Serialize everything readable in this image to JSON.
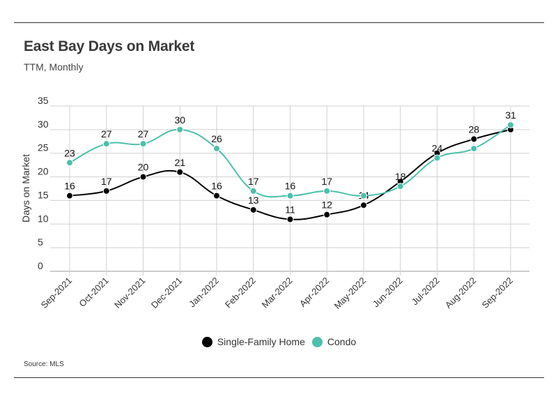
{
  "title": "East Bay Days on Market",
  "subtitle": "TTM, Monthly",
  "source": "Source:  MLS",
  "chart_data": {
    "type": "line",
    "title": "East Bay Days on Market",
    "subtitle": "TTM, Monthly",
    "xlabel": "",
    "ylabel": "Days on Market",
    "ylim": [
      0,
      35
    ],
    "yticks": [
      0,
      5,
      10,
      15,
      20,
      25,
      30,
      35
    ],
    "grid": true,
    "legend_position": "bottom",
    "categories": [
      "Sep-2021",
      "Oct-2021",
      "Nov-2021",
      "Dec-2021",
      "Jan-2022",
      "Feb-2022",
      "Mar-2022",
      "Apr-2022",
      "May-2022",
      "Jun-2022",
      "Jul-2022",
      "Aug-2022",
      "Sep-2022"
    ],
    "series": [
      {
        "name": "Single-Family Home",
        "color": "#000000",
        "values": [
          16,
          17,
          20,
          21,
          16,
          13,
          11,
          12,
          14,
          19,
          25,
          28,
          30
        ],
        "labels": [
          "16",
          "17",
          "20",
          "21",
          "16",
          "13",
          "11",
          "12",
          "14",
          "",
          "",
          "28",
          ""
        ]
      },
      {
        "name": "Condo",
        "color": "#4dbfaa",
        "values": [
          23,
          27,
          27,
          30,
          26,
          17,
          16,
          17,
          16,
          18,
          24,
          26,
          31
        ],
        "labels": [
          "23",
          "27",
          "27",
          "30",
          "26",
          "17",
          "16",
          "17",
          "",
          "18",
          "24",
          "",
          "31"
        ]
      }
    ]
  }
}
